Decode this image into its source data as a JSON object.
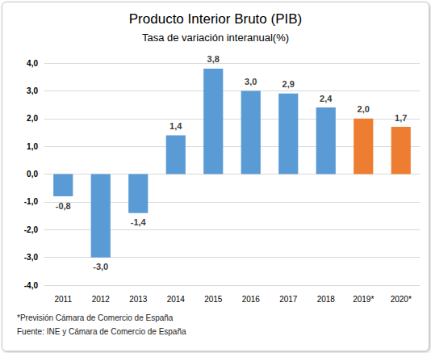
{
  "chart_data": {
    "type": "bar",
    "title": "Producto Interior Bruto (PIB)",
    "subtitle": "Tasa de variación interanual(%)",
    "categories": [
      "2011",
      "2012",
      "2013",
      "2014",
      "2015",
      "2016",
      "2017",
      "2018",
      "2019*",
      "2020*"
    ],
    "values": [
      -0.8,
      -3.0,
      -1.4,
      1.4,
      3.8,
      3.0,
      2.9,
      2.4,
      2.0,
      1.7
    ],
    "value_labels": [
      "-0,8",
      "-3,0",
      "-1,4",
      "1,4",
      "3,8",
      "3,0",
      "2,9",
      "2,4",
      "2,0",
      "1,7"
    ],
    "colors": [
      "#5b9bd5",
      "#5b9bd5",
      "#5b9bd5",
      "#5b9bd5",
      "#5b9bd5",
      "#5b9bd5",
      "#5b9bd5",
      "#5b9bd5",
      "#ed7d31",
      "#ed7d31"
    ],
    "ylim": [
      -4,
      4
    ],
    "yticks": [
      {
        "value": -4,
        "label": "-4,0"
      },
      {
        "value": -3,
        "label": "-3,0"
      },
      {
        "value": -2,
        "label": "-2,0"
      },
      {
        "value": -1,
        "label": "-1,0"
      },
      {
        "value": 0,
        "label": "0,0"
      },
      {
        "value": 1,
        "label": "1,0"
      },
      {
        "value": 2,
        "label": "2,0"
      },
      {
        "value": 3,
        "label": "3,0"
      },
      {
        "value": 4,
        "label": "4,0"
      }
    ],
    "grid": true,
    "data_labels": true,
    "annotations": [
      "*Previsión Cámara de Comercio de España",
      "Fuente: INE y Cámara de Comercio de España"
    ]
  }
}
